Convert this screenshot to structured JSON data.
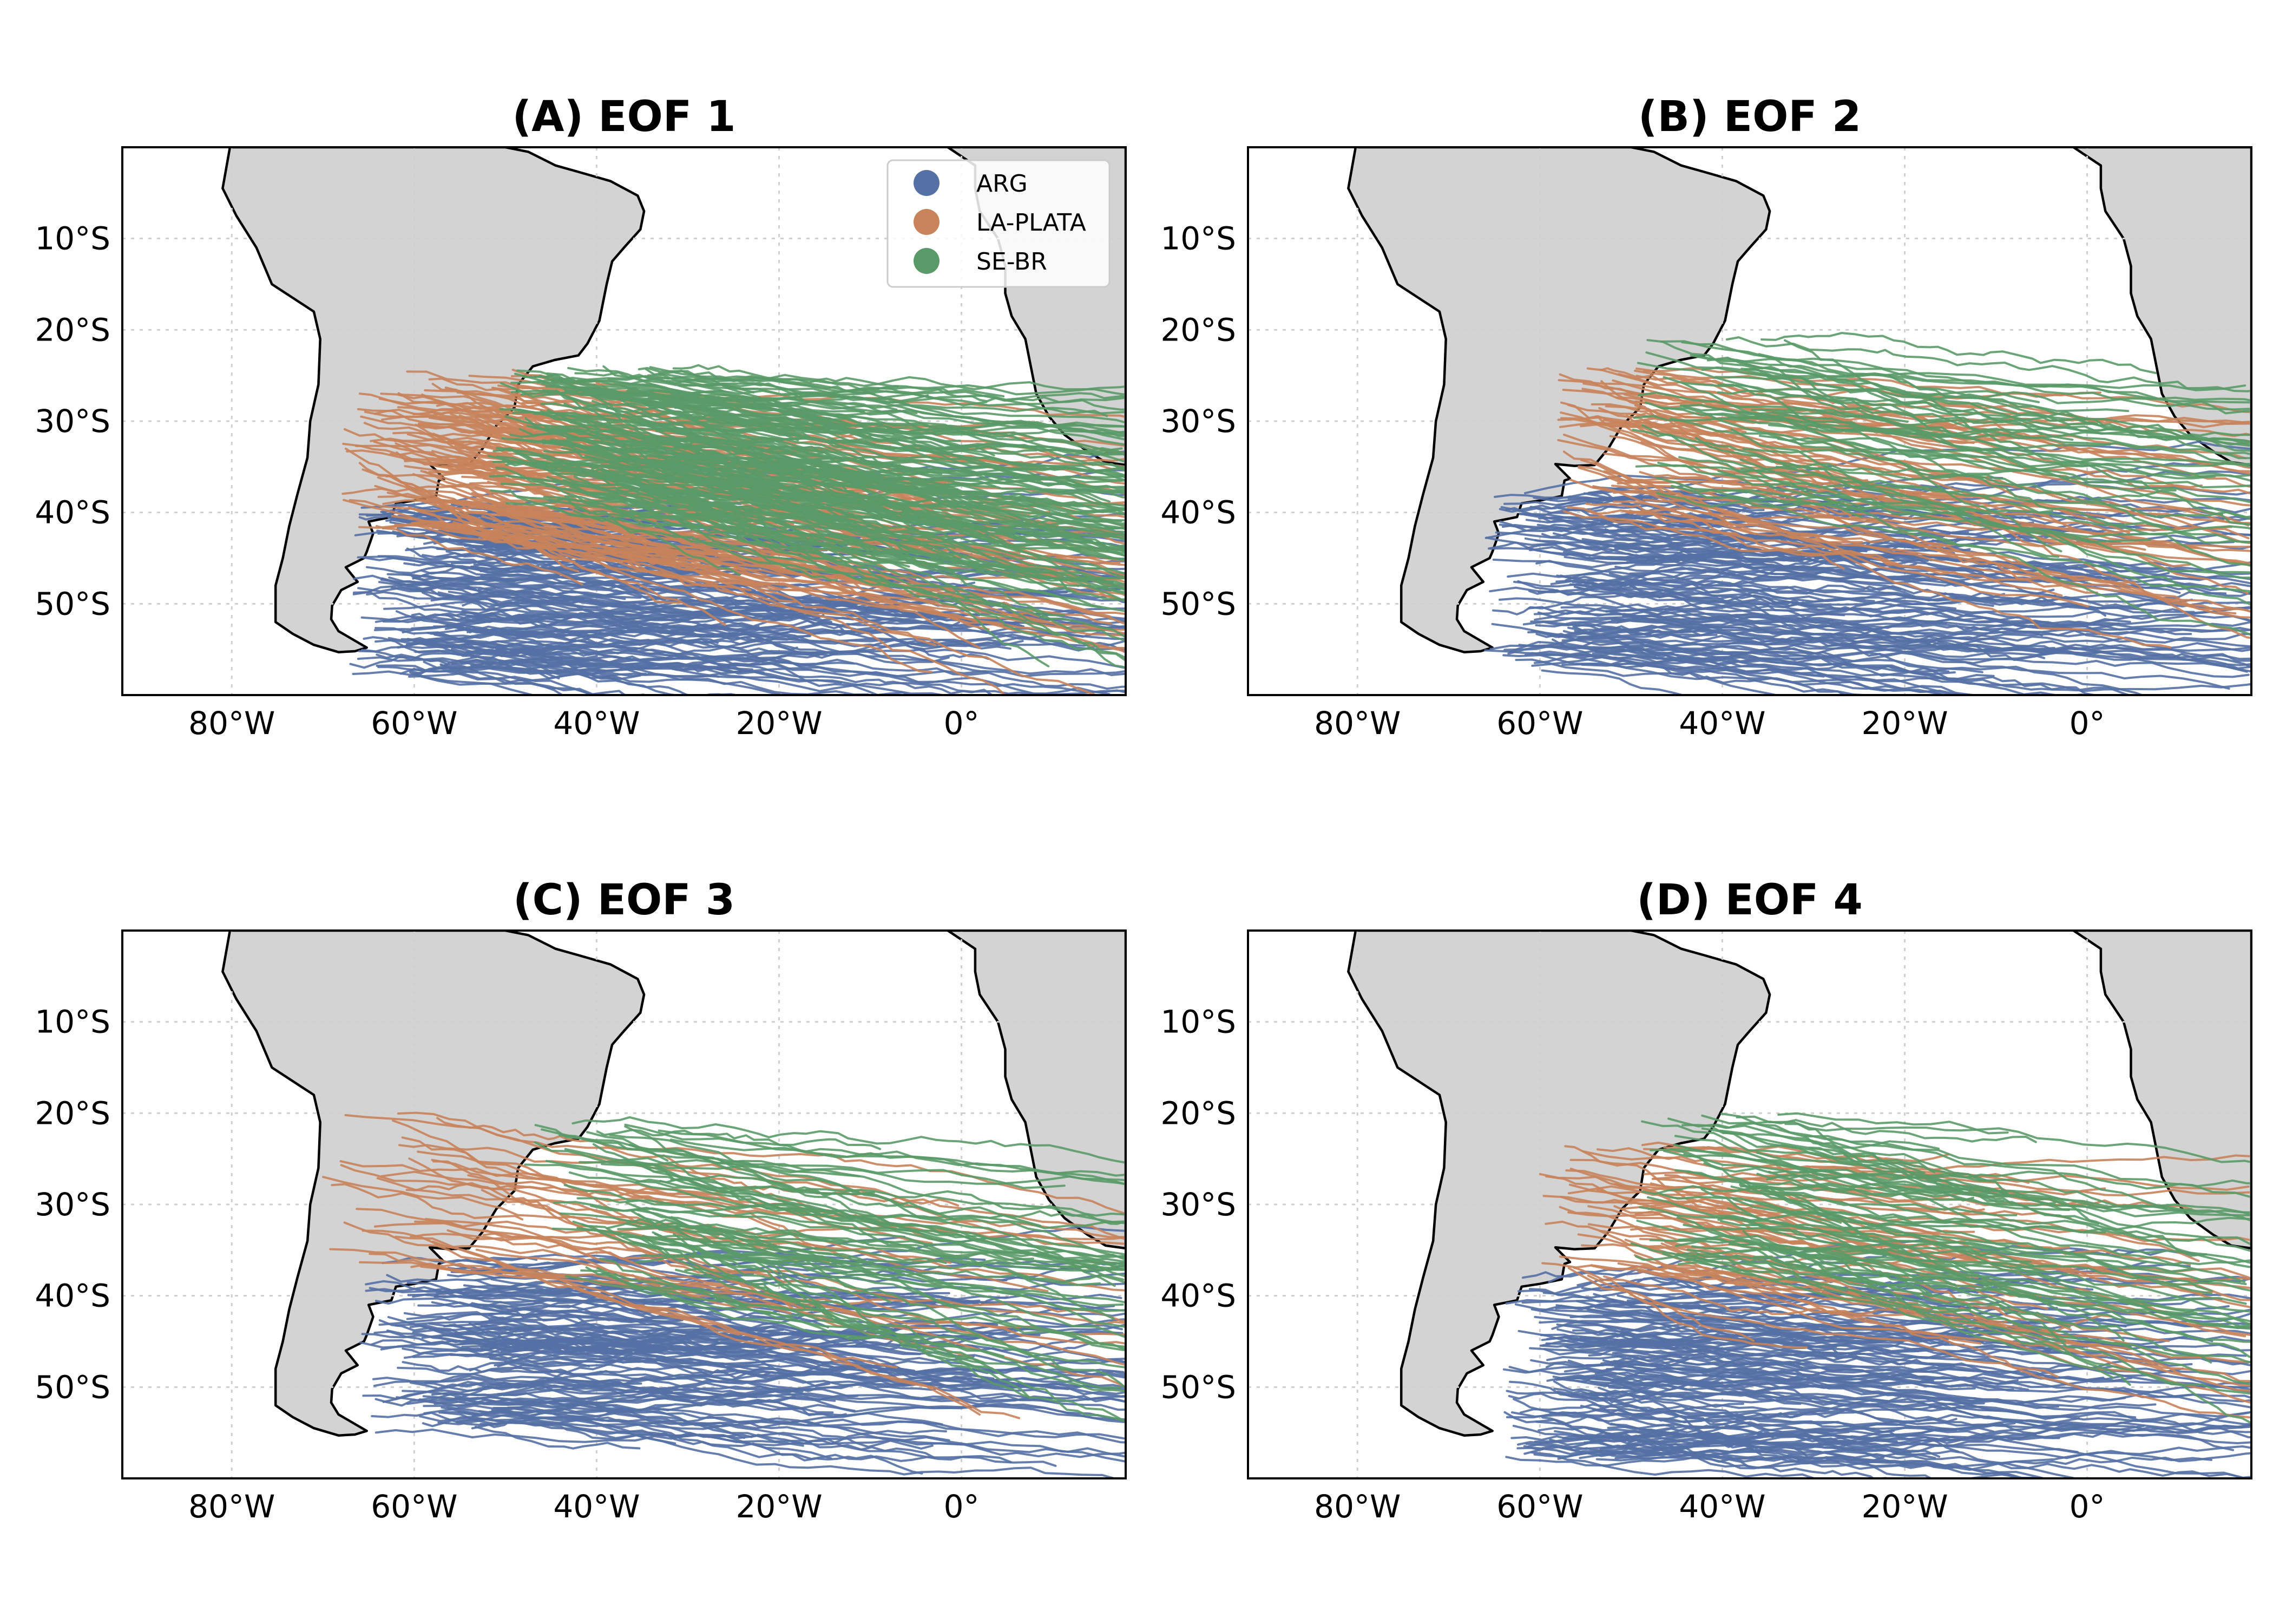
{
  "figure": {
    "extent": {
      "lon": [
        -92,
        18
      ],
      "lat": [
        0,
        -60
      ]
    },
    "xticks": [
      {
        "lon": -80,
        "label": "80°W"
      },
      {
        "lon": -60,
        "label": "60°W"
      },
      {
        "lon": -40,
        "label": "40°W"
      },
      {
        "lon": -20,
        "label": "20°W"
      },
      {
        "lon": 0,
        "label": "0°"
      }
    ],
    "yticks": [
      {
        "lat": -10,
        "label": "10°S"
      },
      {
        "lat": -20,
        "label": "20°S"
      },
      {
        "lat": -30,
        "label": "30°S"
      },
      {
        "lat": -40,
        "label": "40°S"
      },
      {
        "lat": -50,
        "label": "50°S"
      }
    ],
    "grid": true,
    "land_color": "#d3d3d3",
    "legend": {
      "placement": "top-right of panel A",
      "entries": [
        {
          "label": "ARG",
          "color": "#5470a4"
        },
        {
          "label": "LA-PLATA",
          "color": "#c8835b"
        },
        {
          "label": "SE-BR",
          "color": "#5a9a68"
        }
      ]
    },
    "panels": [
      {
        "title": "(A) EOF 1",
        "density": {
          "ARG": 0.9,
          "LA-PLATA": 0.8,
          "SE-BR": 1.0
        },
        "source_regions": {
          "ARG": {
            "lon": [
              -67,
              -52
            ],
            "lat": [
              -39,
              -58
            ]
          },
          "LA-PLATA": {
            "lon": [
              -68,
              -48
            ],
            "lat": [
              -24,
              -42
            ]
          },
          "SE-BR": {
            "lon": [
              -52,
              -30
            ],
            "lat": [
              -24,
              -40
            ]
          }
        },
        "max_east_lon": 18
      },
      {
        "title": "(B) EOF 2",
        "density": {
          "ARG": 0.75,
          "LA-PLATA": 0.35,
          "SE-BR": 0.3
        },
        "source_regions": {
          "ARG": {
            "lon": [
              -66,
              -50
            ],
            "lat": [
              -37,
              -58
            ]
          },
          "LA-PLATA": {
            "lon": [
              -58,
              -48
            ],
            "lat": [
              -24,
              -40
            ]
          },
          "SE-BR": {
            "lon": [
              -50,
              -33
            ],
            "lat": [
              -21,
              -38
            ]
          }
        },
        "max_east_lon": 18
      },
      {
        "title": "(C) EOF 3",
        "density": {
          "ARG": 0.7,
          "LA-PLATA": 0.2,
          "SE-BR": 0.35
        },
        "source_regions": {
          "ARG": {
            "lon": [
              -66,
              -50
            ],
            "lat": [
              -36,
              -55
            ]
          },
          "LA-PLATA": {
            "lon": [
              -70,
              -52
            ],
            "lat": [
              -20,
              -38
            ]
          },
          "SE-BR": {
            "lon": [
              -48,
              -30
            ],
            "lat": [
              -21,
              -38
            ]
          }
        },
        "max_east_lon": 18
      },
      {
        "title": "(D) EOF 4",
        "density": {
          "ARG": 0.75,
          "LA-PLATA": 0.3,
          "SE-BR": 0.4
        },
        "source_regions": {
          "ARG": {
            "lon": [
              -64,
              -50
            ],
            "lat": [
              -38,
              -58
            ]
          },
          "LA-PLATA": {
            "lon": [
              -60,
              -45
            ],
            "lat": [
              -23,
              -38
            ]
          },
          "SE-BR": {
            "lon": [
              -50,
              -30
            ],
            "lat": [
              -20,
              -37
            ]
          }
        },
        "max_east_lon": 18
      }
    ]
  }
}
